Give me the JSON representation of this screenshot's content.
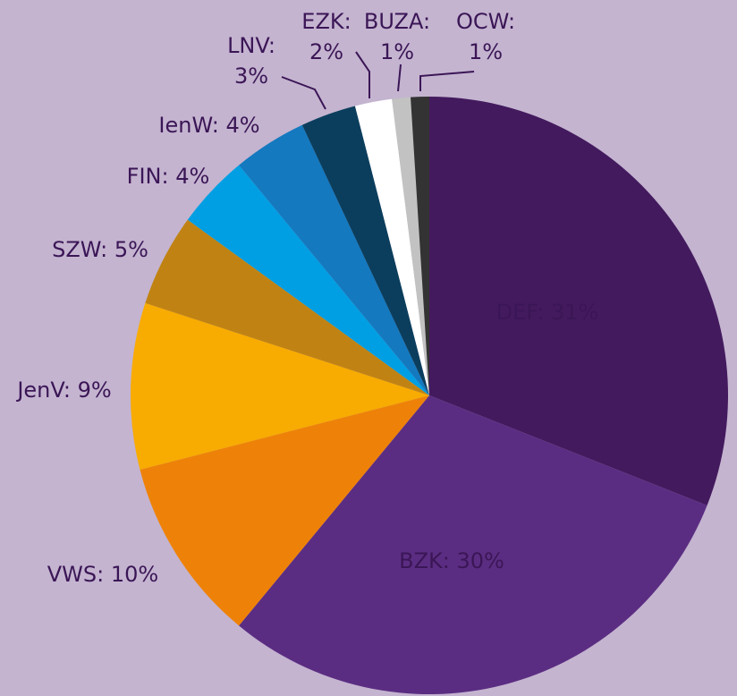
{
  "chart_data": {
    "type": "pie",
    "categories": [
      "DEF:",
      "BZK:",
      "VWS:",
      "JenV:",
      "SZW:",
      "FIN:",
      "IenW:",
      "LNV:",
      "EZK:",
      "BUZA:",
      "OCW:"
    ],
    "values": [
      31,
      30,
      10,
      9,
      5,
      4,
      4,
      3,
      2,
      1,
      1
    ],
    "value_labels": [
      "31%",
      "30%",
      "10%",
      "9%",
      "5%",
      "4%",
      "4%",
      "3%",
      "2%",
      "1%",
      "1%"
    ],
    "colors": [
      "#431a5e",
      "#5b2d82",
      "#ee8208",
      "#f8ab00",
      "#c08313",
      "#009fe3",
      "#1479bf",
      "#0b3e5d",
      "#ffffff",
      "#c2c2c2",
      "#333333"
    ]
  }
}
